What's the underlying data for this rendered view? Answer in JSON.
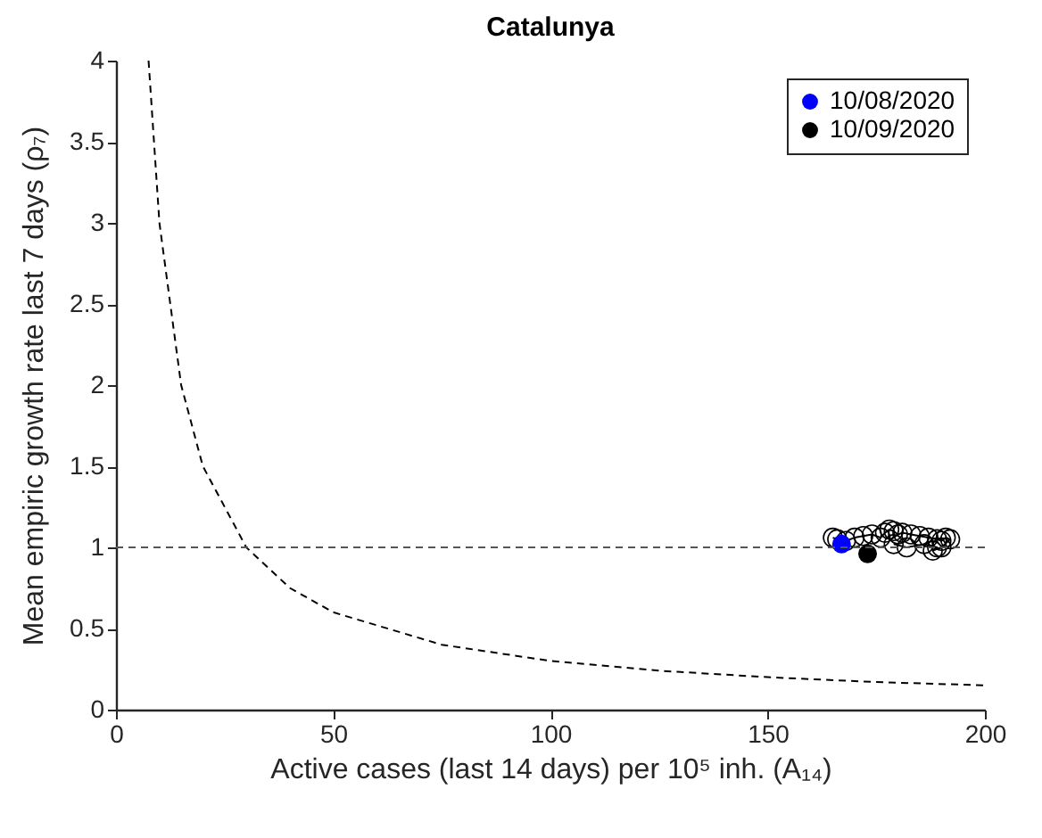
{
  "chart_data": {
    "type": "scatter",
    "title": "Catalunya",
    "xlabel": "Active cases (last 14 days) per 10⁵ inh. (A₁₄)",
    "ylabel": "Mean empiric growth rate last 7 days (ρ₇)",
    "xlim": [
      0,
      200
    ],
    "ylim": [
      0,
      4
    ],
    "xticks": [
      0,
      50,
      100,
      150,
      200
    ],
    "yticks": [
      0,
      0.5,
      1,
      1.5,
      2,
      2.5,
      3,
      3.5,
      4
    ],
    "grid": false,
    "legend": "top right",
    "ref_lines": [
      {
        "axis": "y",
        "value": 1,
        "color": "#555555",
        "line_style": "dashed"
      }
    ],
    "series": [
      {
        "type": "line",
        "color": "#000000",
        "line_style": "dashed",
        "marker": "none",
        "x": [
          7.5,
          10,
          15,
          20,
          30,
          40,
          50,
          75,
          100,
          125,
          150,
          175,
          200
        ],
        "values": [
          4,
          3,
          2,
          1.5,
          1,
          0.75,
          0.6,
          0.4,
          0.3,
          0.24,
          0.2,
          0.17,
          0.15
        ]
      },
      {
        "type": "line",
        "color": "#000000",
        "line_style": "solid",
        "marker": "circle",
        "x": [
          165,
          166,
          168,
          170,
          172,
          174,
          176,
          177,
          178,
          179,
          180,
          181,
          183,
          185,
          187,
          189,
          190,
          191,
          192,
          190,
          188,
          189,
          186,
          182,
          179
        ],
        "values": [
          1.06,
          1.05,
          1.04,
          1.06,
          1.07,
          1.08,
          1.06,
          1.09,
          1.11,
          1.1,
          1.08,
          1.09,
          1.08,
          1.07,
          1.06,
          1.05,
          1.04,
          1.06,
          1.05,
          1,
          0.98,
          1,
          1.02,
          1,
          1.02
        ]
      },
      {
        "name": "10/08/2020",
        "color": "#0000ff",
        "marker": "circle",
        "x": [
          167
        ],
        "values": [
          1.02
        ]
      },
      {
        "name": "10/09/2020",
        "color": "#000000",
        "marker": "circle",
        "x": [
          173
        ],
        "values": [
          0.96
        ]
      }
    ]
  }
}
